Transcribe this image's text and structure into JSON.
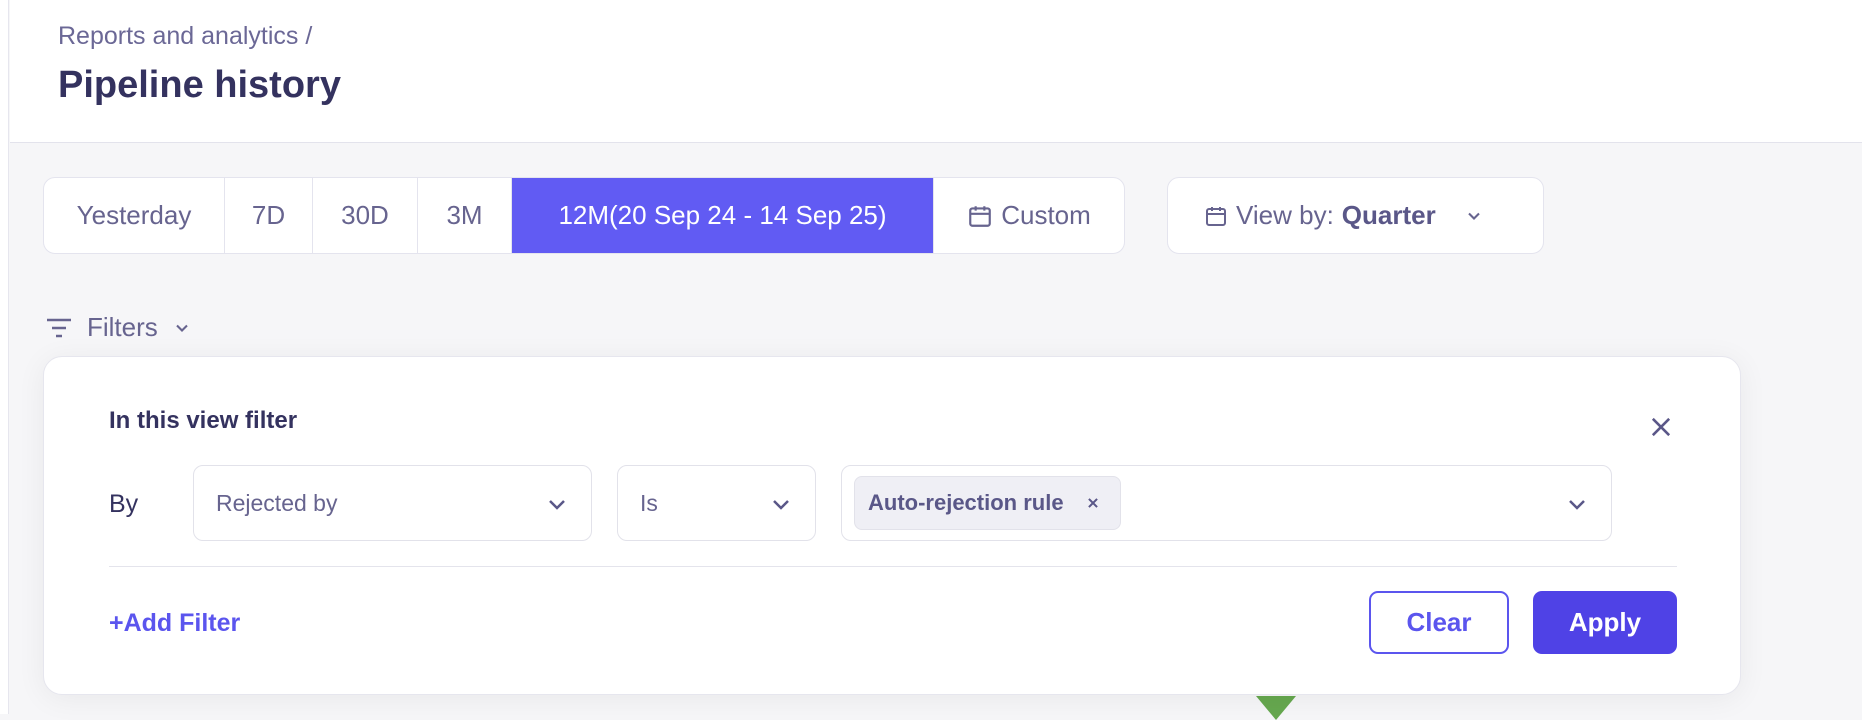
{
  "header": {
    "breadcrumb": "Reports and analytics /",
    "title": "Pipeline history"
  },
  "range_tabs": [
    {
      "label": "Yesterday",
      "active": false
    },
    {
      "label": "7D",
      "active": false
    },
    {
      "label": "30D",
      "active": false
    },
    {
      "label": "3M",
      "active": false
    },
    {
      "label": "12M(20 Sep 24 - 14 Sep 25)",
      "active": true
    },
    {
      "label": "Custom",
      "active": false,
      "icon": "calendar-icon"
    }
  ],
  "view_by": {
    "label": "View by:",
    "value": "Quarter",
    "icon": "calendar-icon"
  },
  "filters": {
    "label": "Filters",
    "icon": "filter-lines-icon"
  },
  "filter_panel": {
    "title": "In this view filter",
    "by_label": "By",
    "field": "Rejected by",
    "operator": "Is",
    "values": [
      "Auto-rejection rule"
    ],
    "add_filter": "+Add Filter",
    "clear": "Clear",
    "apply": "Apply"
  },
  "colors": {
    "accent": "#615bf3",
    "apply": "#4f42e6",
    "chart_green": "#66a84f"
  }
}
